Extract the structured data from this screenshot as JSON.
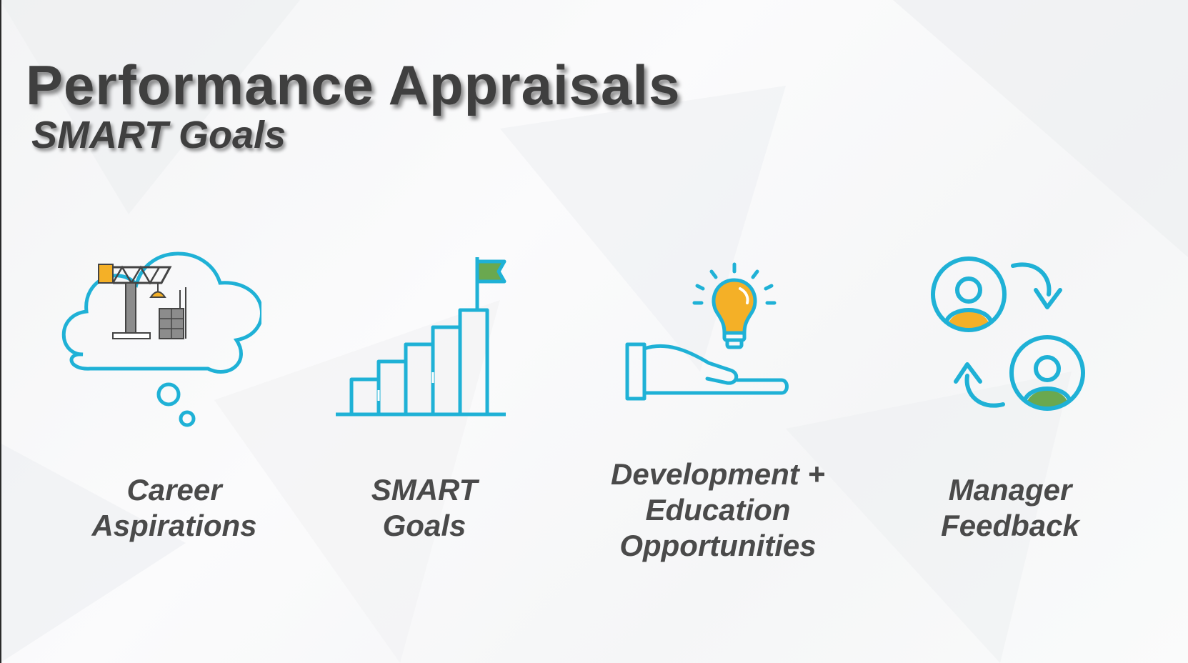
{
  "slide": {
    "title": "Performance Appraisals",
    "subtitle": "SMART Goals"
  },
  "items": [
    {
      "icon": "cloud-crane-icon",
      "lines": [
        "Career",
        "Aspirations"
      ]
    },
    {
      "icon": "bar-chart-flag-icon",
      "lines": [
        "SMART",
        "Goals"
      ]
    },
    {
      "icon": "hand-lightbulb-icon",
      "lines": [
        "Development +",
        "Education",
        "Opportunities"
      ]
    },
    {
      "icon": "people-exchange-icon",
      "lines": [
        "Manager",
        "Feedback"
      ]
    }
  ],
  "colors": {
    "icon_blue": "#1fb1d6",
    "accent_orange": "#f4b027",
    "accent_green": "#6aa84f",
    "crane_gray": "#8c8c8c",
    "text_gray": "#4a4a4a"
  }
}
